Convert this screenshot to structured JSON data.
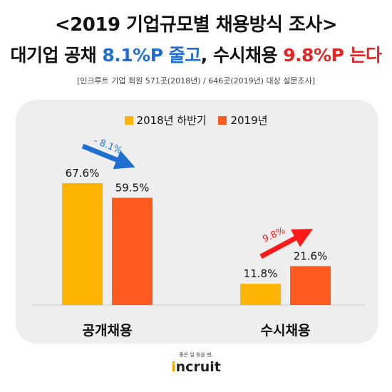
{
  "header": {
    "title_line1": "<2019 기업규모별 채용방식 조사>",
    "title_line2_a": "대기업 공채 ",
    "title_line2_b": "8.1%P 줄고",
    "title_line2_c": ", 수시채용 ",
    "title_line2_d": "9.8%P 는다",
    "source": "[인크루트 기업 회원 571곳(2018년) / 646곳(2019년) 대상 설문조사]"
  },
  "colors": {
    "series_2018": "#ffb400",
    "series_2019": "#ff5a1f",
    "arrow_down": "#1f6fd0",
    "arrow_up": "#ff1a1a",
    "panel": "#eeeeee"
  },
  "chart_data": {
    "type": "bar",
    "categories": [
      "공개채용",
      "수시채용"
    ],
    "series": [
      {
        "name": "2018년 하반기",
        "values": [
          67.6,
          11.8
        ],
        "labels": [
          "67.6%",
          "11.8%"
        ]
      },
      {
        "name": "2019년",
        "values": [
          59.5,
          21.6
        ],
        "labels": [
          "59.5%",
          "21.6%"
        ]
      }
    ],
    "annotations": [
      {
        "category": "공개채용",
        "text": "- 8.1%",
        "direction": "down"
      },
      {
        "category": "수시채용",
        "text": "9.8%",
        "direction": "up"
      }
    ],
    "legend": "top"
  },
  "footer": {
    "tagline": "좋은 일 찾을 땐,",
    "brand_pre": "",
    "brand_dot": "i",
    "brand_rest": "ncruit"
  }
}
